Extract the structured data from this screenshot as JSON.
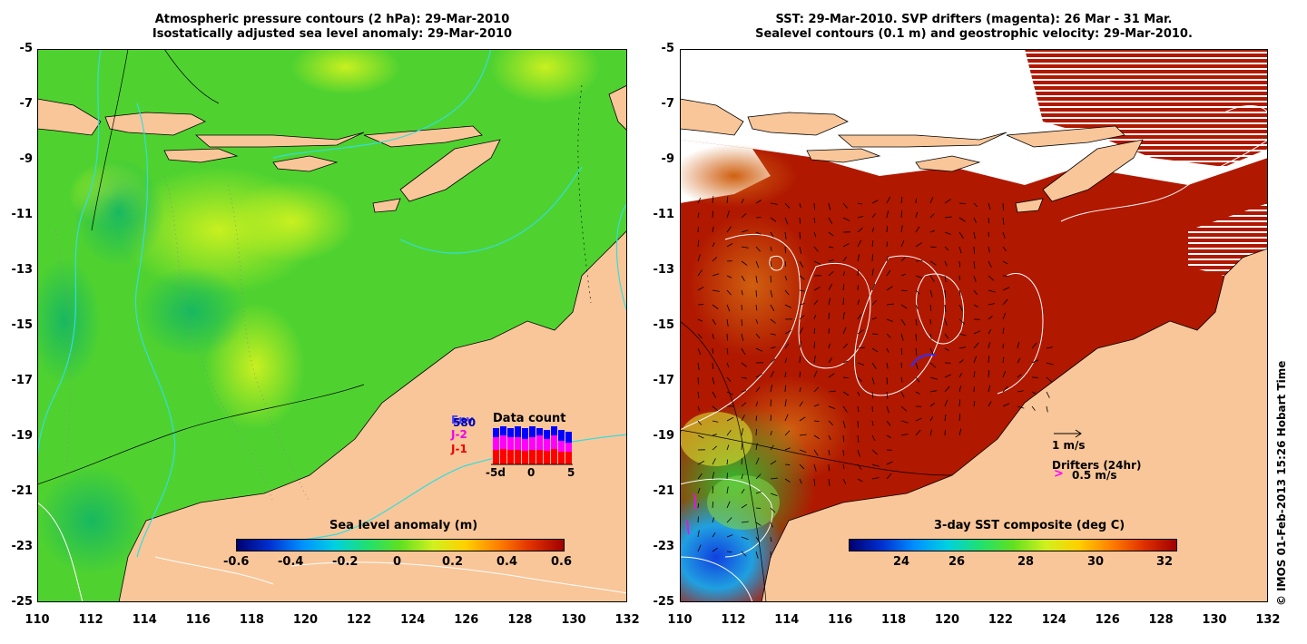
{
  "left_panel": {
    "title_line1": "Atmospheric pressure contours (2 hPa): 29-Mar-2010",
    "title_line2": "Isostatically adjusted sea level anomaly: 29-Mar-2010",
    "colorbar_title": "Sea level anomaly (m)",
    "colorbar_ticks": [
      "-0.6",
      "-0.4",
      "-0.2",
      "0",
      "0.2",
      "0.4",
      "0.6"
    ],
    "data_count": {
      "title": "Data count",
      "legend": [
        "Env",
        "580",
        "J-2",
        "J-1"
      ],
      "xticks": [
        "-5d",
        "0",
        "5"
      ]
    }
  },
  "right_panel": {
    "title_line1": "SST: 29-Mar-2010. SVP drifters (magenta): 26 Mar - 31 Mar.",
    "title_line2": "Sealevel contours (0.1 m) and geostrophic velocity: 29-Mar-2010.",
    "colorbar_title": "3-day SST composite (deg C)",
    "colorbar_ticks": [
      "24",
      "26",
      "28",
      "30",
      "32"
    ],
    "velocity_scale": "1 m/s",
    "drifters_label": "Drifters (24hr)",
    "drifter_speed": "0.5 m/s"
  },
  "axes": {
    "lat_ticks": [
      "-5",
      "-7",
      "-9",
      "-11",
      "-13",
      "-15",
      "-17",
      "-19",
      "-21",
      "-23",
      "-25"
    ],
    "lon_ticks": [
      "110",
      "112",
      "114",
      "116",
      "118",
      "120",
      "122",
      "124",
      "126",
      "128",
      "130",
      "132"
    ]
  },
  "credit": "© IMOS 01-Feb-2013 15:26 Hobart Time",
  "colors": {
    "land": "#f9c699",
    "ocean_green": "#4fd230",
    "sst_red": "#b01800",
    "contour_cyan": "#33dddd"
  }
}
